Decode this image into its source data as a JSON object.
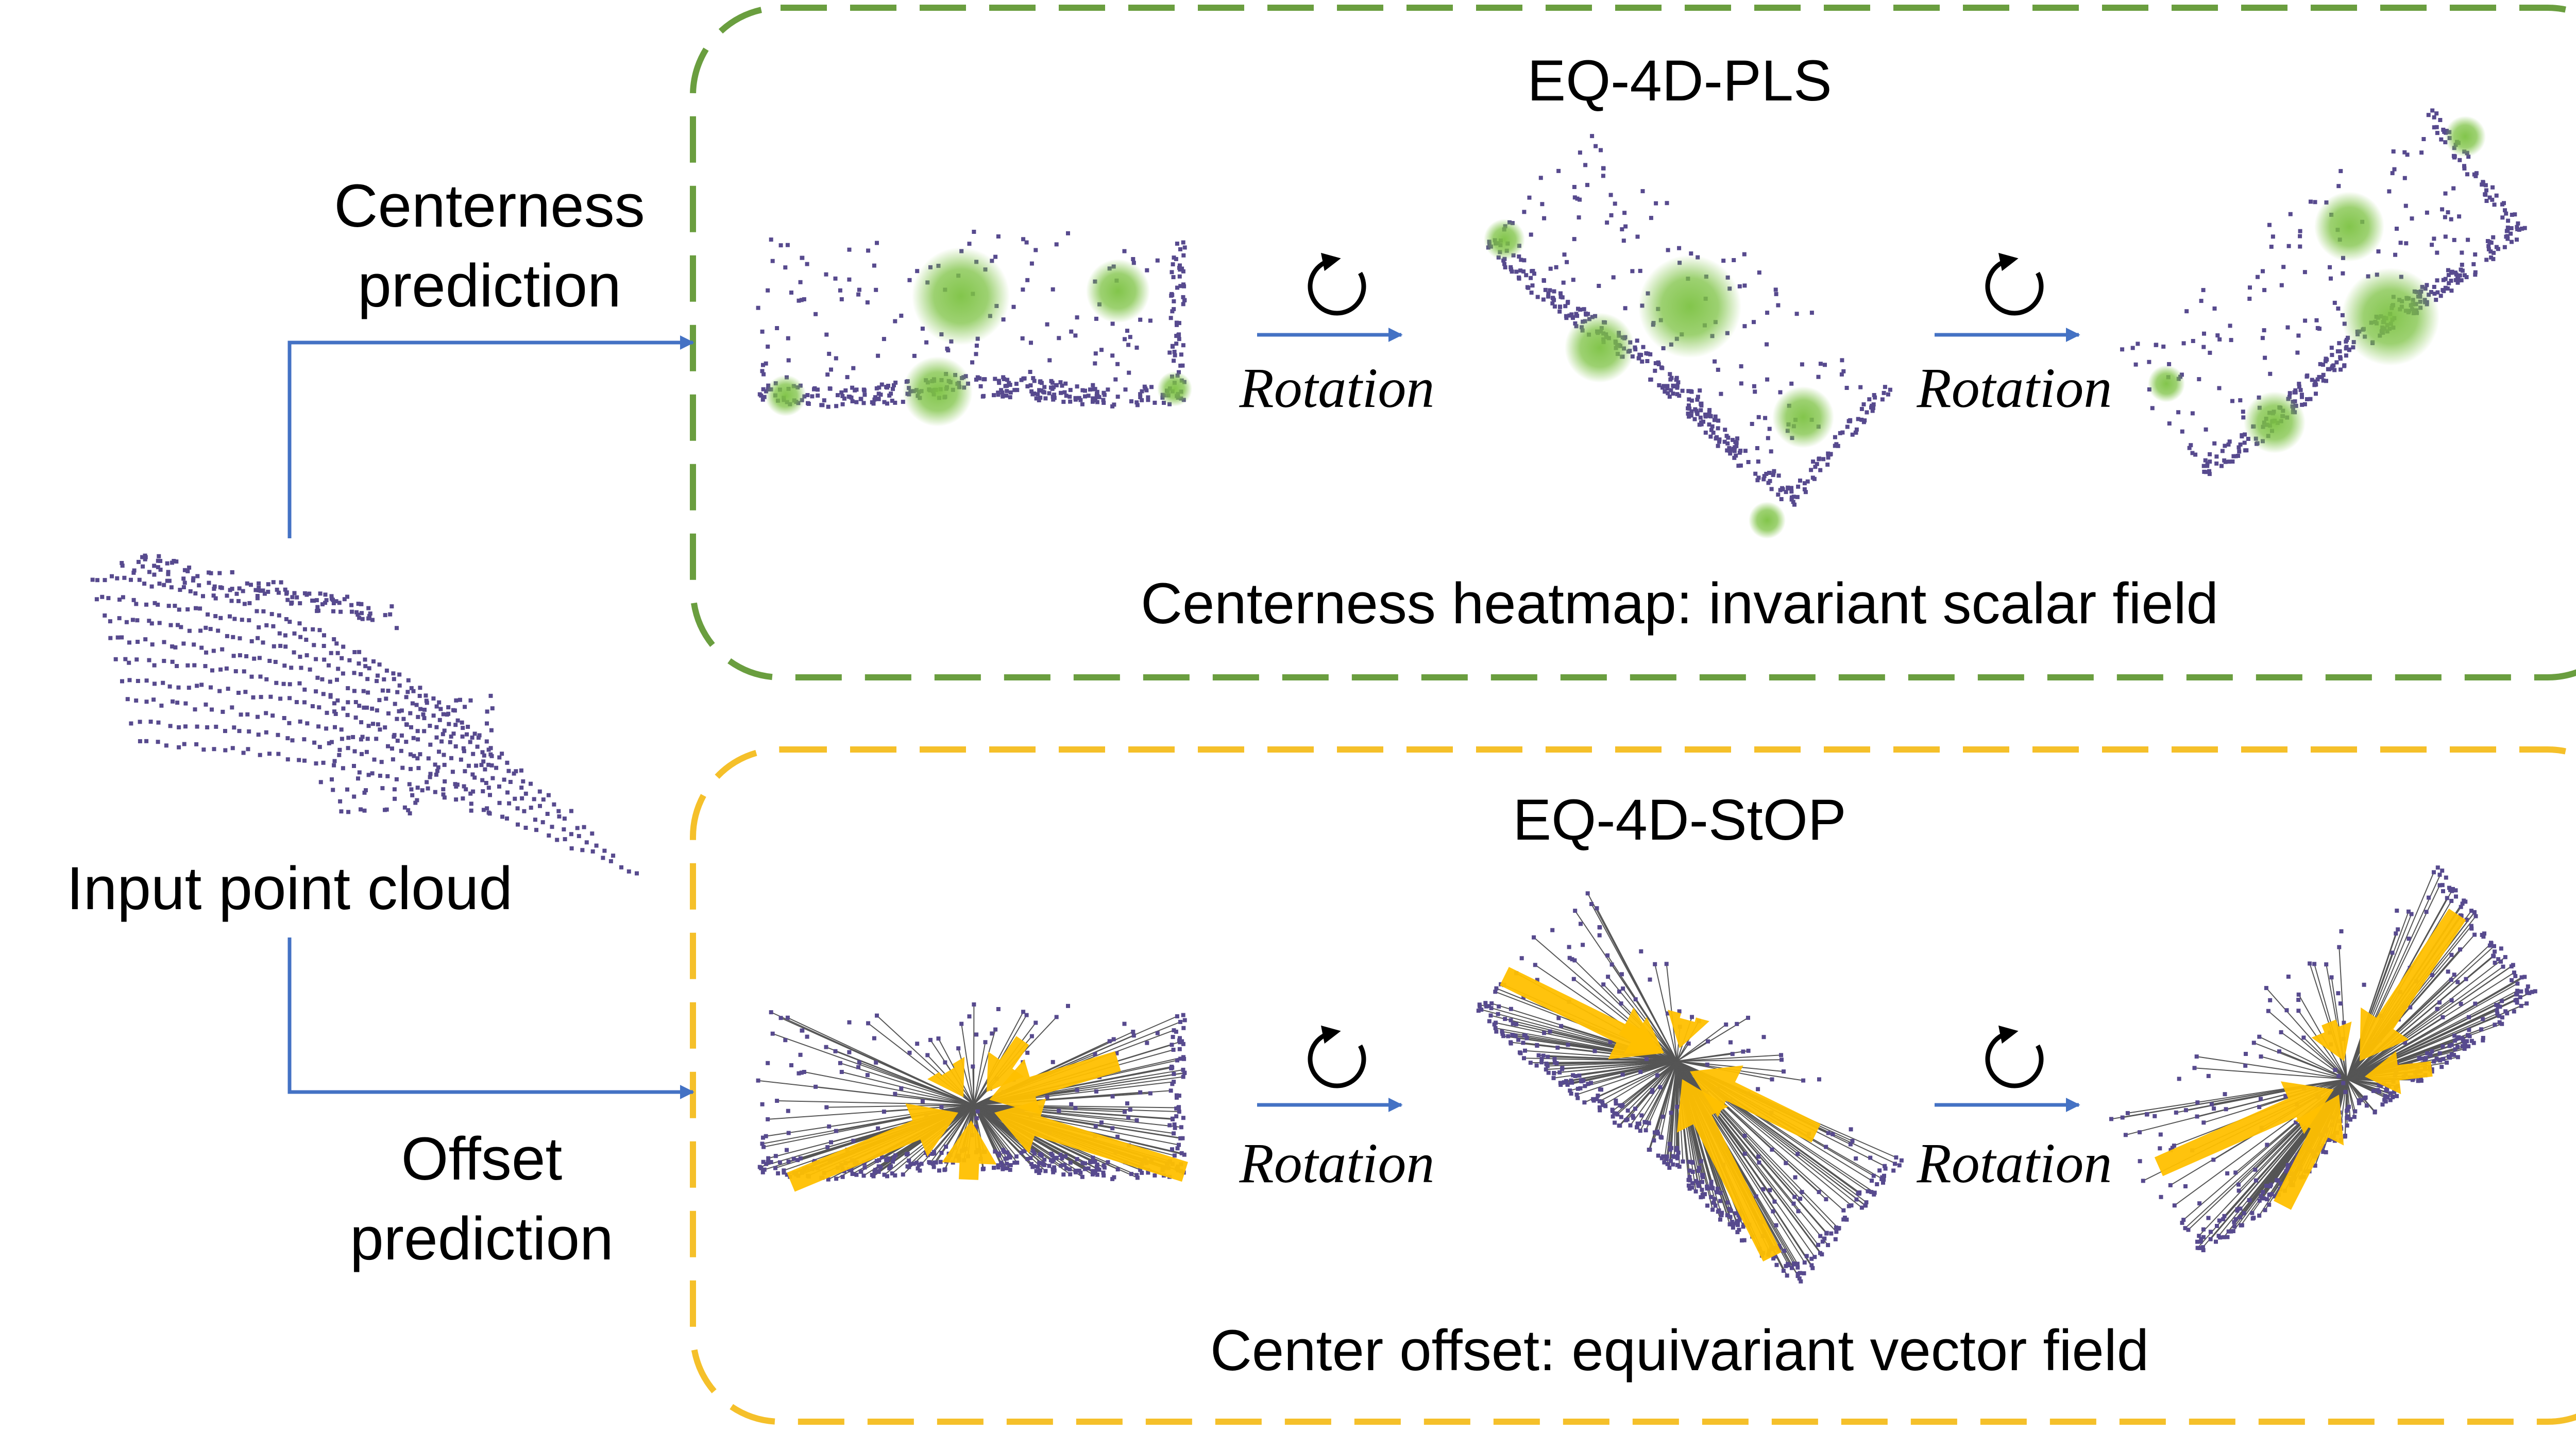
{
  "input_label": "Input point cloud",
  "branches": {
    "centerness": {
      "label_line1": "Centerness",
      "label_line2": "prediction",
      "panel_title": "EQ-4D-PLS",
      "caption": "Centerness heatmap: invariant scalar field",
      "frame_color": "#6a9e3f",
      "highlight_color": "#7cc242"
    },
    "offset": {
      "label_line1": "Offset",
      "label_line2": "prediction",
      "panel_title": "EQ-4D-StOP",
      "caption": "Center offset: equivariant vector field",
      "frame_color": "#f5c02a",
      "highlight_color": "#ffc000"
    }
  },
  "rotation_label": "Rotation",
  "rotation_icon": "rotate-clockwise-icon",
  "colors": {
    "points": "#574a8e",
    "connector": "#4472c4",
    "offset_lines": "#555555"
  }
}
